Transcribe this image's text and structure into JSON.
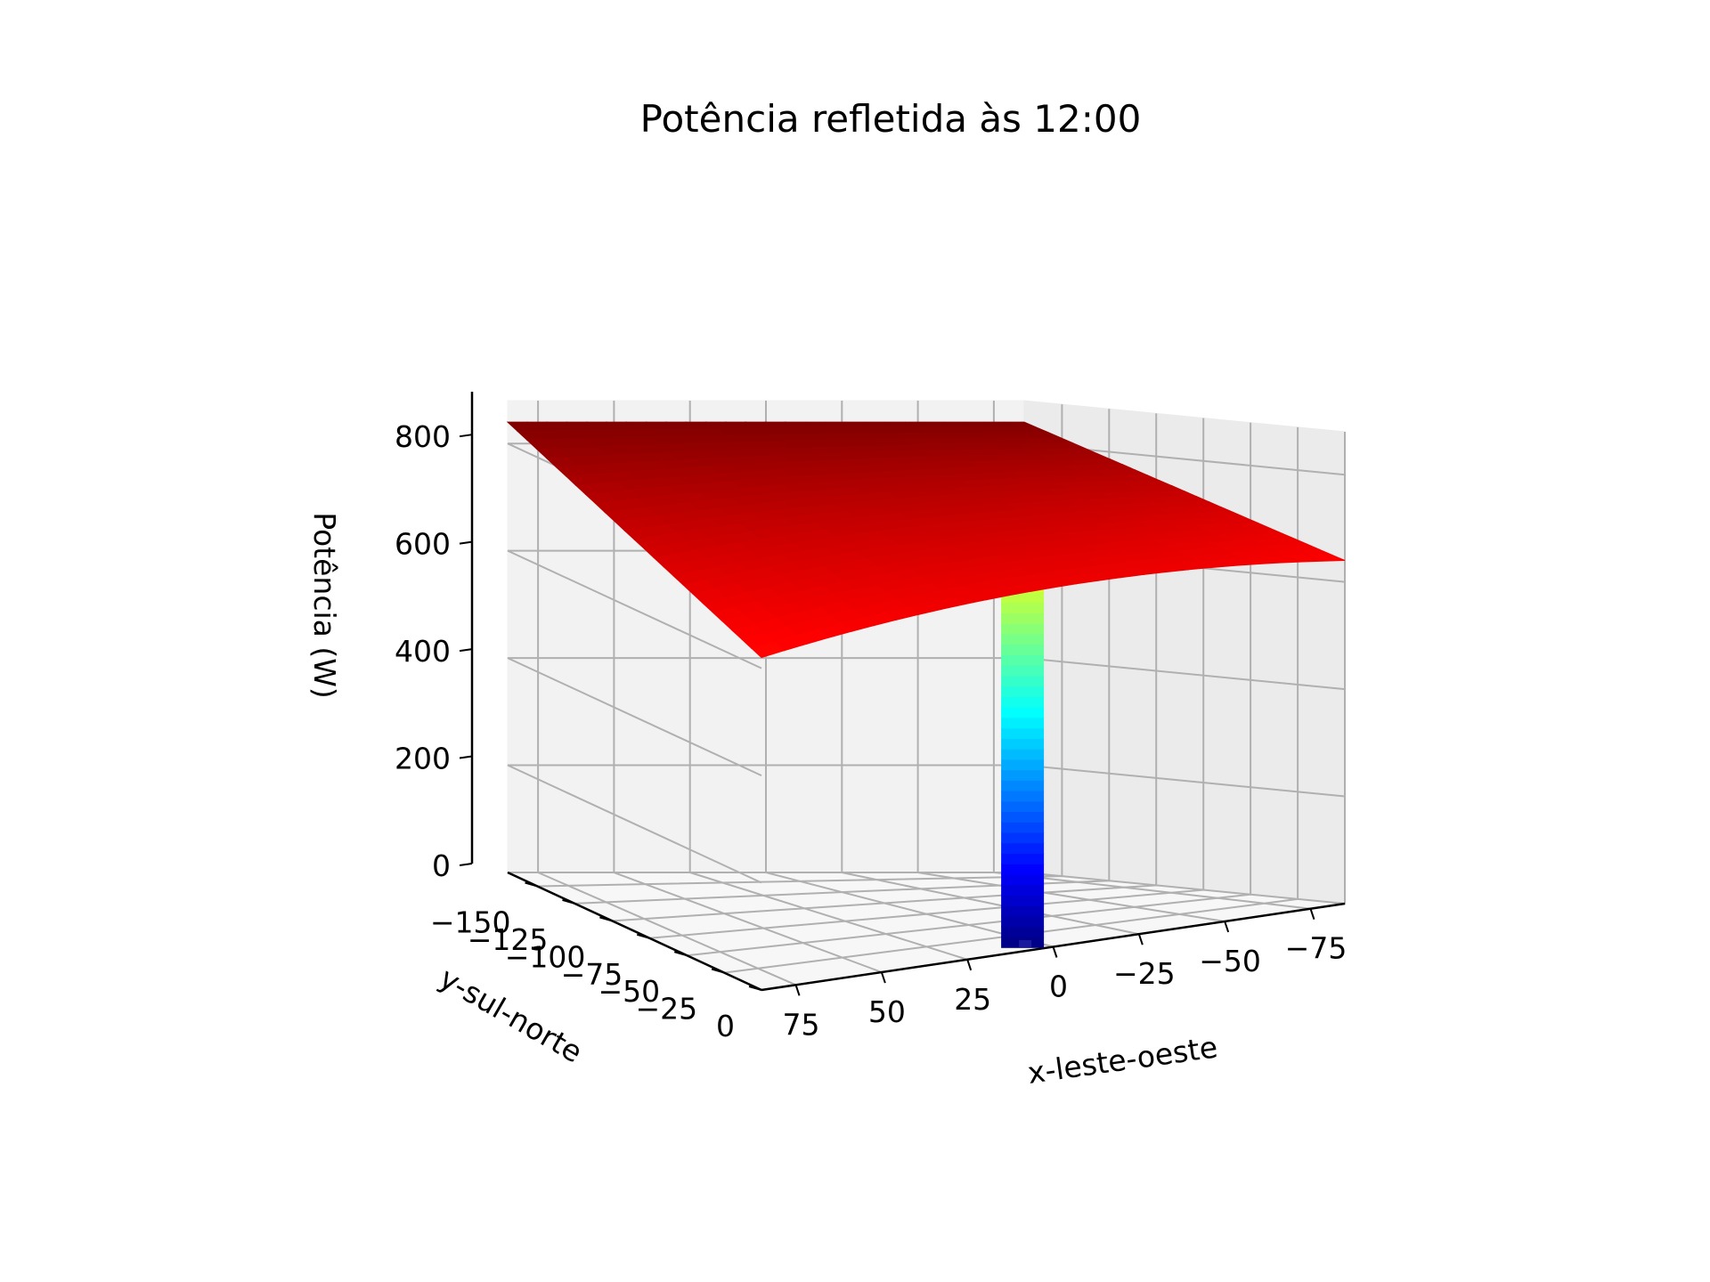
{
  "chart_data": {
    "type": "surface3d",
    "title": "Potência refletida às 12:00",
    "xlabel": "x-leste-oeste",
    "ylabel": "y-sul-norte",
    "zlabel": "Potência (W)",
    "x_ticks": [
      "75",
      "50",
      "25",
      "0",
      "−25",
      "−50",
      "−75"
    ],
    "y_ticks": [
      "−150",
      "−125",
      "−100",
      "−75",
      "−50",
      "−25",
      "0"
    ],
    "z_ticks": [
      "0",
      "200",
      "400",
      "600",
      "800"
    ],
    "xlim": [
      -85,
      85
    ],
    "ylim": [
      -170,
      0
    ],
    "zlim": [
      0,
      880
    ],
    "colormap": "jet",
    "surface": {
      "plateau_max": 840,
      "corner_values": {
        "x_pos_y_neg": 840,
        "x_neg_y_neg": 840,
        "x_pos_y_zero": 620,
        "x_neg_y_zero": 640
      },
      "well_center": [
        0,
        0
      ],
      "well_min": 0
    },
    "grid": true
  }
}
